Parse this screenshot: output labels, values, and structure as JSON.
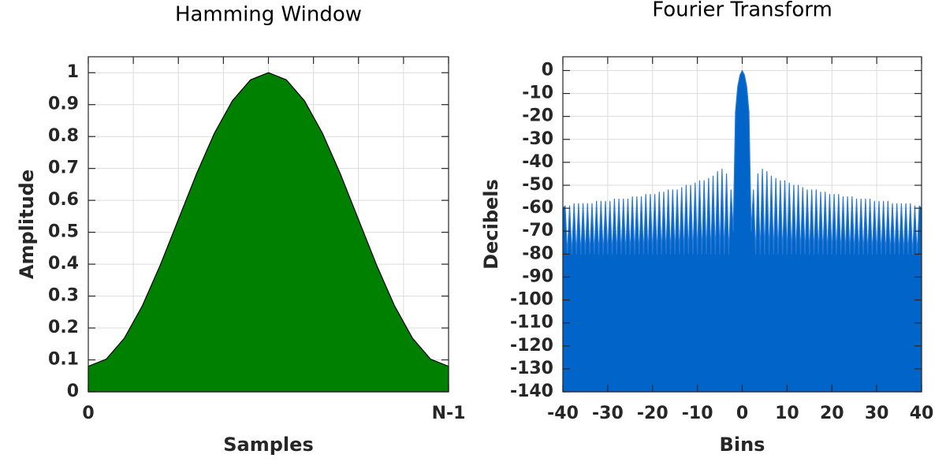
{
  "chart_data": [
    {
      "type": "area",
      "title": "Hamming Window",
      "xlabel": "Samples",
      "ylabel": "Amplitude",
      "x": [
        0,
        1,
        2,
        3,
        4,
        5,
        6,
        7,
        8,
        9,
        10,
        11,
        12,
        13,
        14,
        15,
        16,
        17,
        18,
        19,
        20
      ],
      "values": [
        0.08,
        0.1025,
        0.1679,
        0.2696,
        0.3979,
        0.54,
        0.6821,
        0.8104,
        0.9121,
        0.9775,
        1.0,
        0.9775,
        0.9121,
        0.8104,
        0.6821,
        0.54,
        0.3979,
        0.2696,
        0.1679,
        0.1025,
        0.08
      ],
      "color": "#008000",
      "edgecolor": "#000000",
      "xlim": [
        0,
        20
      ],
      "xticks": [
        {
          "value": 0,
          "label": "0"
        },
        {
          "value": 20,
          "label": "N-1"
        }
      ],
      "xminorticks": [
        2.5,
        5,
        7.5,
        10,
        12.5,
        15,
        17.5
      ],
      "ylim": [
        0,
        1.05
      ],
      "yticks": [
        0,
        0.1,
        0.2,
        0.3,
        0.4,
        0.5,
        0.6,
        0.7,
        0.8,
        0.9,
        1
      ],
      "grid": true
    },
    {
      "type": "area",
      "title": "Fourier Transform",
      "xlabel": "Bins",
      "ylabel": "Decibels",
      "x": [
        -40,
        -39.5,
        -39,
        -38.5,
        -38,
        -37.5,
        -37,
        -36.5,
        -36,
        -35.5,
        -35,
        -34.5,
        -34,
        -33.5,
        -33,
        -32.5,
        -32,
        -31.5,
        -31,
        -30.5,
        -30,
        -29.5,
        -29,
        -28.5,
        -28,
        -27.5,
        -27,
        -26.5,
        -26,
        -25.5,
        -25,
        -24.5,
        -24,
        -23.5,
        -23,
        -22.5,
        -22,
        -21.5,
        -21,
        -20.5,
        -20,
        -19.5,
        -19,
        -18.5,
        -18,
        -17.5,
        -17,
        -16.5,
        -16,
        -15.5,
        -15,
        -14.5,
        -14,
        -13.5,
        -13,
        -12.5,
        -12,
        -11.5,
        -11,
        -10.5,
        -10,
        -9.5,
        -9,
        -8.5,
        -8,
        -7.5,
        -7,
        -6.5,
        -6,
        -5.5,
        -5,
        -4.5,
        -4,
        -3.5,
        -3,
        -2.5,
        -2,
        -1.5,
        -1,
        -0.5,
        0,
        0.5,
        1,
        1.5,
        2,
        2.5,
        3,
        3.5,
        4,
        4.5,
        5,
        5.5,
        6,
        6.5,
        7,
        7.5,
        8,
        8.5,
        9,
        9.5,
        10,
        10.5,
        11,
        11.5,
        12,
        12.5,
        13,
        13.5,
        14,
        14.5,
        15,
        15.5,
        16,
        16.5,
        17,
        17.5,
        18,
        18.5,
        19,
        19.5,
        20,
        20.5,
        21,
        21.5,
        22,
        22.5,
        23,
        23.5,
        24,
        24.5,
        25,
        25.5,
        26,
        26.5,
        27,
        27.5,
        28,
        28.5,
        29,
        29.5,
        30,
        30.5,
        31,
        31.5,
        32,
        32.5,
        33,
        33.5,
        34,
        34.5,
        35,
        35.5,
        36,
        36.5,
        37,
        37.5,
        38,
        38.5,
        39,
        39.5,
        40
      ],
      "values": [
        -60,
        -59,
        -80,
        -59,
        -80,
        -58,
        -80,
        -58,
        -80,
        -58,
        -80,
        -58,
        -80,
        -58,
        -80,
        -57,
        -80,
        -57,
        -80,
        -57,
        -80,
        -57,
        -80,
        -56,
        -80,
        -56,
        -80,
        -56,
        -80,
        -56,
        -80,
        -55,
        -80,
        -55,
        -80,
        -55,
        -80,
        -54,
        -80,
        -54,
        -80,
        -54,
        -80,
        -53,
        -80,
        -53,
        -80,
        -52,
        -80,
        -52,
        -80,
        -52,
        -80,
        -51,
        -80,
        -50,
        -80,
        -50,
        -80,
        -49,
        -80,
        -48,
        -80,
        -48,
        -80,
        -47,
        -80,
        -46,
        -80,
        -44,
        -80,
        -43,
        -80,
        -45,
        -80,
        -52,
        -70,
        -18,
        -7,
        -2,
        0,
        -2,
        -7,
        -18,
        -70,
        -52,
        -80,
        -45,
        -80,
        -43,
        -80,
        -44,
        -80,
        -46,
        -80,
        -47,
        -80,
        -48,
        -80,
        -48,
        -80,
        -49,
        -80,
        -50,
        -80,
        -50,
        -80,
        -51,
        -80,
        -52,
        -80,
        -52,
        -80,
        -52,
        -80,
        -53,
        -80,
        -53,
        -80,
        -54,
        -80,
        -54,
        -80,
        -54,
        -80,
        -55,
        -80,
        -55,
        -80,
        -55,
        -80,
        -56,
        -80,
        -56,
        -80,
        -56,
        -80,
        -56,
        -80,
        -57,
        -80,
        -57,
        -80,
        -57,
        -80,
        -57,
        -80,
        -58,
        -80,
        -58,
        -80,
        -58,
        -80,
        -58,
        -80,
        -58,
        -80,
        -59,
        -80,
        -59,
        -60
      ],
      "color": "#0064c8",
      "edgecolor": "#2a7ad4",
      "xlim": [
        -40,
        40
      ],
      "xticks": [
        -40,
        -30,
        -20,
        -10,
        0,
        10,
        20,
        30,
        40
      ],
      "ylim": [
        -140,
        6
      ],
      "yticks": [
        0,
        -10,
        -20,
        -30,
        -40,
        -50,
        -60,
        -70,
        -80,
        -90,
        -100,
        -110,
        -120,
        -130,
        -140
      ],
      "grid": true
    }
  ]
}
